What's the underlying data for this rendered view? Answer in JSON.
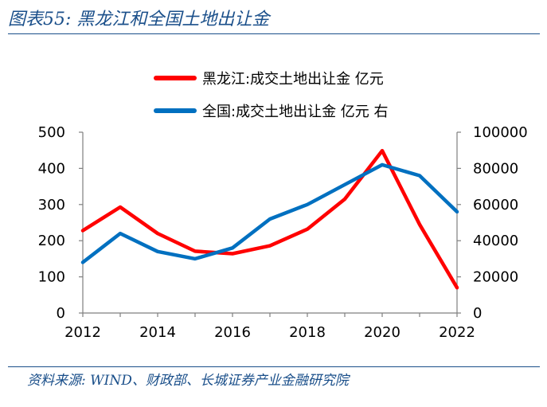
{
  "figure": {
    "title": "图表55:  黑龙江和全国土地出让金",
    "source": "资料来源:  WIND、财政部、长城证券产业金融研究院"
  },
  "chart_data": {
    "type": "line",
    "title": "黑龙江和全国土地出让金",
    "x": [
      2012,
      2013,
      2014,
      2015,
      2016,
      2017,
      2018,
      2019,
      2020,
      2021,
      2022
    ],
    "xticks": [
      "2012",
      "2014",
      "2016",
      "2018",
      "2020",
      "2022"
    ],
    "xlim": [
      2012,
      2022
    ],
    "ylim_left": [
      0,
      500
    ],
    "yticks_left": [
      "0",
      "100",
      "200",
      "300",
      "400",
      "500"
    ],
    "ylim_right": [
      0,
      100000
    ],
    "yticks_right": [
      "0",
      "20000",
      "40000",
      "60000",
      "80000",
      "100000"
    ],
    "grid": false,
    "legend_position": "top",
    "series": [
      {
        "name": "黑龙江:成交土地出让金 亿元",
        "axis": "left",
        "color": "#ff0000",
        "values": [
          228,
          293,
          220,
          171,
          164,
          186,
          232,
          315,
          449,
          245,
          70
        ]
      },
      {
        "name": "全国:成交土地出让金 亿元 右",
        "axis": "right",
        "color": "#0070c0",
        "values": [
          28000,
          44000,
          34000,
          30000,
          36000,
          52000,
          60000,
          71000,
          82000,
          76000,
          56000
        ]
      }
    ]
  }
}
